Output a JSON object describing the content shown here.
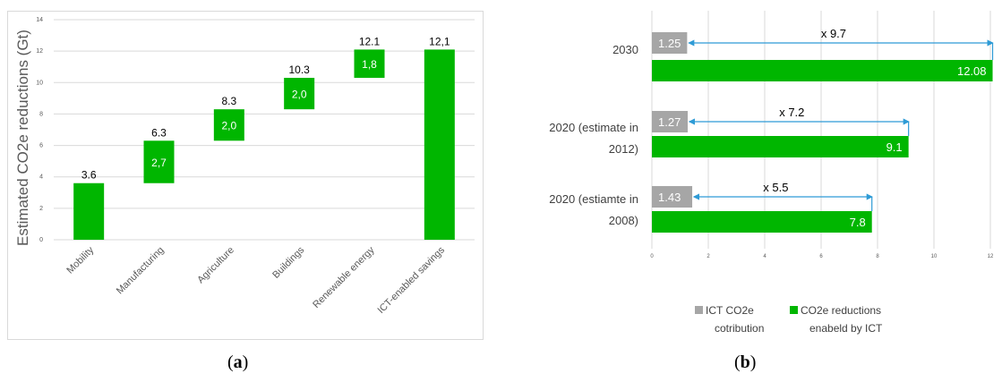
{
  "colors": {
    "green": "#00B600",
    "gray": "#A6A6A6",
    "arrow": "#2E9BD6",
    "grid": "#D9D9D9",
    "axis_text": "#595959"
  },
  "chart_data": [
    {
      "type": "bar",
      "subtype": "waterfall",
      "title": "",
      "ylabel": "Estimated CO2e reductions (Gt)",
      "xlabel": "",
      "ylim": [
        0,
        14
      ],
      "yticks": [
        "0",
        "2",
        "4",
        "6",
        "8",
        "10",
        "12",
        "14"
      ],
      "grid": true,
      "categories": [
        "Mobility",
        "Manufacturing",
        "Agriculture",
        "Buildings",
        "Renewable energy",
        "ICT-enabled savings"
      ],
      "bars": [
        {
          "category": "Mobility",
          "base": 0,
          "top": 3.6,
          "top_label": "3.6",
          "inner_label": ""
        },
        {
          "category": "Manufacturing",
          "base": 3.6,
          "top": 6.3,
          "top_label": "6.3",
          "inner_label": "2,7"
        },
        {
          "category": "Agriculture",
          "base": 6.3,
          "top": 8.3,
          "top_label": "8.3",
          "inner_label": "2,0"
        },
        {
          "category": "Buildings",
          "base": 8.3,
          "top": 10.3,
          "top_label": "10.3",
          "inner_label": "2,0"
        },
        {
          "category": "Renewable energy",
          "base": 10.3,
          "top": 12.1,
          "top_label": "12.1",
          "inner_label": "1,8"
        },
        {
          "category": "ICT-enabled savings",
          "base": 0,
          "top": 12.1,
          "top_label": "12,1",
          "inner_label": ""
        }
      ]
    },
    {
      "type": "bar",
      "orientation": "horizontal",
      "title": "",
      "xlabel": "",
      "ylabel": "",
      "xlim": [
        0,
        12
      ],
      "xticks": [
        "0",
        "2",
        "4",
        "6",
        "8",
        "10",
        "12"
      ],
      "grid": true,
      "legend_position": "bottom",
      "categories": [
        {
          "lines": [
            "2030"
          ]
        },
        {
          "lines": [
            "2020 (estimate in",
            "2012)"
          ]
        },
        {
          "lines": [
            "2020 (estiamte in",
            "2008)"
          ]
        }
      ],
      "series": [
        {
          "name_lines": [
            "ICT CO2e",
            "cotribution"
          ],
          "color": "#A6A6A6",
          "values": [
            1.25,
            1.27,
            1.43
          ],
          "labels": [
            "1.25",
            "1.27",
            "1.43"
          ]
        },
        {
          "name_lines": [
            "CO2e reductions",
            "enabeld by ICT"
          ],
          "color": "#00B600",
          "values": [
            12.08,
            9.1,
            7.8
          ],
          "labels": [
            "12.08",
            "9.1",
            "7.8"
          ]
        }
      ],
      "annotations": [
        "x 9.7",
        "x 7.2",
        "x 5.5"
      ]
    }
  ],
  "captions": {
    "a": "a",
    "b": "b"
  }
}
